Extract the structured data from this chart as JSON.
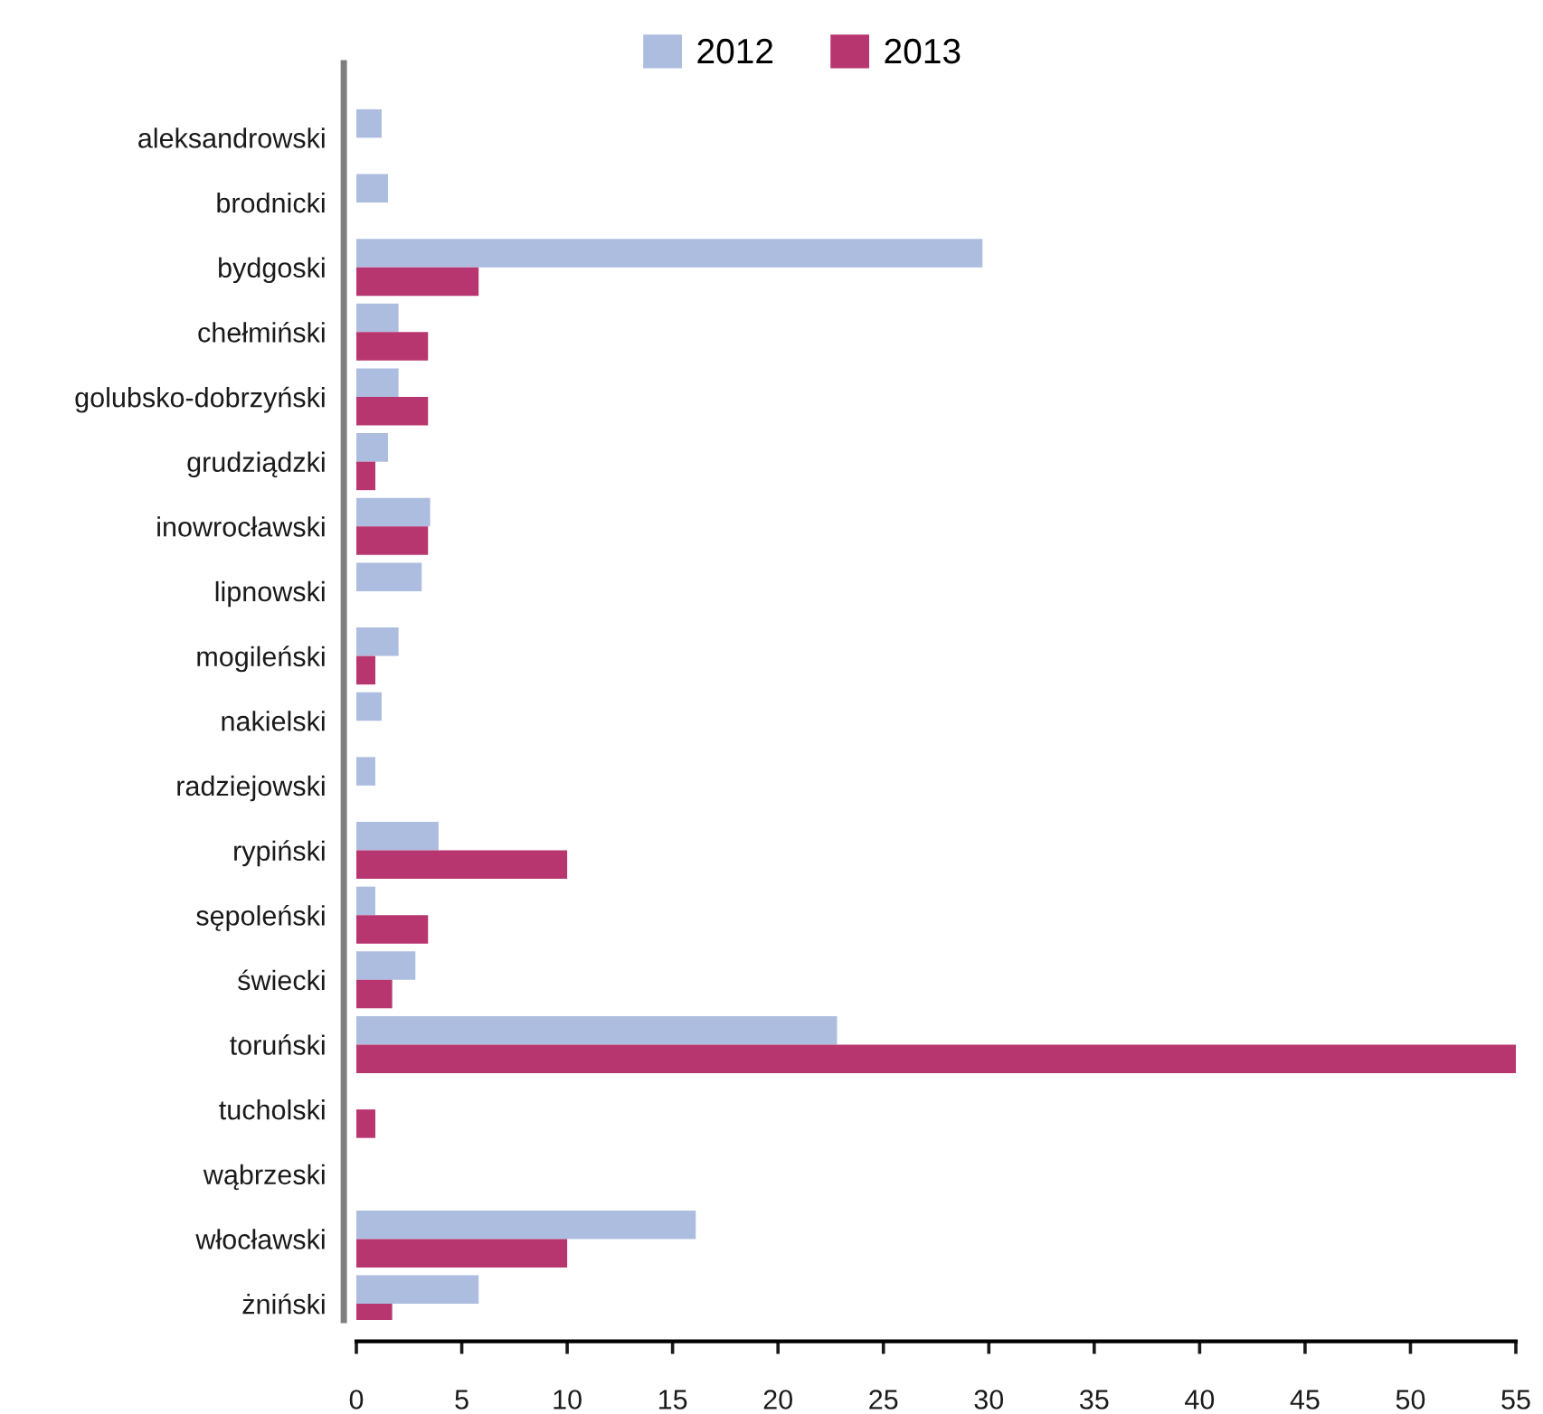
{
  "chart_data": {
    "type": "bar",
    "orientation": "horizontal",
    "categories": [
      "aleksandrowski",
      "brodnicki",
      "bydgoski",
      "chełmiński",
      "golubsko-dobrzyński",
      "grudziądzki",
      "inowrocławski",
      "lipnowski",
      "mogileński",
      "nakielski",
      "radziejowski",
      "rypiński",
      "sępoleński",
      "świecki",
      "toruński",
      "tucholski",
      "wąbrzeski",
      "włocławski",
      "żniński"
    ],
    "series": [
      {
        "name": "2012",
        "color": "#adbddf",
        "values": [
          1.2,
          1.5,
          29.7,
          2.0,
          2.0,
          1.5,
          3.5,
          3.1,
          2.0,
          1.2,
          0.9,
          3.9,
          0.9,
          2.8,
          22.8,
          null,
          null,
          16.1,
          5.8
        ]
      },
      {
        "name": "2013",
        "color": "#b83670",
        "values": [
          null,
          null,
          5.8,
          3.4,
          3.4,
          0.9,
          3.4,
          null,
          0.9,
          null,
          null,
          10.0,
          3.4,
          1.7,
          55,
          0.9,
          null,
          10.0,
          1.7
        ]
      }
    ],
    "xlim": [
      0,
      55
    ],
    "xticks": [
      0,
      5,
      10,
      15,
      20,
      25,
      30,
      35,
      40,
      45,
      50,
      55
    ],
    "legend": "top"
  }
}
